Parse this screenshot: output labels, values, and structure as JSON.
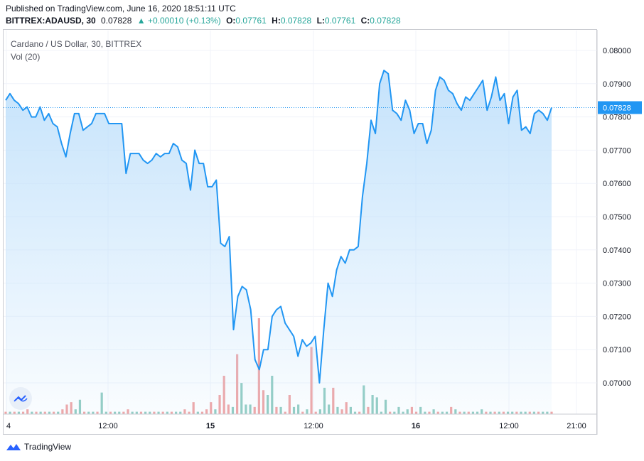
{
  "header": {
    "published": "Published on TradingView.com, June 16, 2020 18:51:11 UTC",
    "symbol": "BITTREX:ADAUSD, 30",
    "last": "0.07828",
    "change": "▲ +0.00010 (+0.13%)",
    "o_label": "O:",
    "o_value": "0.07761",
    "h_label": "H:",
    "h_value": "0.07828",
    "l_label": "L:",
    "l_value": "0.07761",
    "c_label": "C:",
    "c_value": "0.07828"
  },
  "legend": {
    "title": "Cardano / US Dollar, 30, BITTREX",
    "volume": "Vol (20)"
  },
  "footer": {
    "brand": "TradingView"
  },
  "colors": {
    "line": "#2196f3",
    "area_top": "#bbdefb",
    "up_vol": "#8fcbc0",
    "down_vol": "#f0a3a3",
    "price_label_bg": "#2196f3",
    "grid": "#f0f3fa"
  },
  "chart_data": {
    "type": "area",
    "title": "Cardano / US Dollar, 30, BITTREX",
    "ylim": [
      0.0695,
      0.0805
    ],
    "y_ticks": [
      "0.08000",
      "0.07900",
      "0.07800",
      "0.07700",
      "0.07600",
      "0.07500",
      "0.07400",
      "0.07300",
      "0.07200",
      "0.07100",
      "0.07000"
    ],
    "y_tick_values": [
      0.08,
      0.079,
      0.078,
      0.077,
      0.076,
      0.075,
      0.074,
      0.073,
      0.072,
      0.071,
      0.07
    ],
    "x_ticks": [
      {
        "label": "4",
        "index": 0,
        "bold": false
      },
      {
        "label": "12:00",
        "index": 16,
        "bold": false
      },
      {
        "label": "15",
        "index": 32,
        "bold": true
      },
      {
        "label": "12:00",
        "index": 48,
        "bold": false
      },
      {
        "label": "16",
        "index": 64,
        "bold": true
      },
      {
        "label": "12:00",
        "index": 80,
        "bold": false
      },
      {
        "label": "21:00",
        "index": 89,
        "bold": false
      }
    ],
    "last_price": "0.07828",
    "last_value": 0.07828,
    "series": [
      {
        "values": [
          0.0785,
          0.0787,
          0.0785,
          0.0784,
          0.0782,
          0.0783,
          0.078,
          0.078,
          0.0783,
          0.0779,
          0.0781,
          0.0778,
          0.0777,
          0.0772,
          0.0768,
          0.0775,
          0.0781,
          0.0781,
          0.0776,
          0.0777,
          0.0778,
          0.0781,
          0.0781,
          0.0781,
          0.0778,
          0.0778,
          0.0778,
          0.0778,
          0.0763,
          0.0769,
          0.0769,
          0.0769,
          0.0767,
          0.0766,
          0.0767,
          0.0769,
          0.0768,
          0.0769,
          0.0769,
          0.0772,
          0.0771,
          0.0767,
          0.0766,
          0.0758,
          0.077,
          0.0766,
          0.0766,
          0.0759,
          0.0759,
          0.0761,
          0.0742,
          0.0741,
          0.0744,
          0.0716,
          0.0726,
          0.0729,
          0.0728,
          0.0722,
          0.0707,
          0.0704,
          0.071,
          0.071,
          0.072,
          0.0722,
          0.0723,
          0.0718,
          0.0716,
          0.0714,
          0.0708,
          0.0713,
          0.0711,
          0.0712,
          0.0714,
          0.07,
          0.0716,
          0.073,
          0.0726,
          0.0734,
          0.0738,
          0.0736,
          0.074,
          0.074,
          0.0741,
          0.0756,
          0.0766,
          0.0779,
          0.0775,
          0.079,
          0.0794,
          0.0793,
          0.0782,
          0.0781,
          0.0779,
          0.0785,
          0.0782,
          0.0775,
          0.0778,
          0.0778,
          0.0772,
          0.0776,
          0.0788,
          0.0792,
          0.0791,
          0.0788,
          0.0787,
          0.0784,
          0.0782,
          0.0786,
          0.0785,
          0.0787,
          0.0789,
          0.0791,
          0.0782,
          0.0786,
          0.0792,
          0.0785,
          0.0787,
          0.0778,
          0.0786,
          0.0788,
          0.0776,
          0.0777,
          0.0775,
          0.0781,
          0.0782,
          0.0781,
          0.0779,
          0.07828
        ]
      }
    ],
    "volume": [
      {
        "v": 1,
        "up": false
      },
      {
        "v": 1,
        "up": true
      },
      {
        "v": 1,
        "up": false
      },
      {
        "v": 1,
        "up": true
      },
      {
        "v": 1,
        "up": false
      },
      {
        "v": 2,
        "up": false
      },
      {
        "v": 1,
        "up": true
      },
      {
        "v": 1,
        "up": false
      },
      {
        "v": 1,
        "up": true
      },
      {
        "v": 1,
        "up": false
      },
      {
        "v": 1,
        "up": true
      },
      {
        "v": 1,
        "up": false
      },
      {
        "v": 1,
        "up": true
      },
      {
        "v": 2,
        "up": false
      },
      {
        "v": 4,
        "up": false
      },
      {
        "v": 5,
        "up": false
      },
      {
        "v": 2,
        "up": true
      },
      {
        "v": 6,
        "up": true
      },
      {
        "v": 1,
        "up": false
      },
      {
        "v": 1,
        "up": true
      },
      {
        "v": 1,
        "up": true
      },
      {
        "v": 1,
        "up": false
      },
      {
        "v": 9,
        "up": true
      },
      {
        "v": 1,
        "up": true
      },
      {
        "v": 1,
        "up": false
      },
      {
        "v": 1,
        "up": true
      },
      {
        "v": 1,
        "up": true
      },
      {
        "v": 1,
        "up": false
      },
      {
        "v": 2,
        "up": false
      },
      {
        "v": 1,
        "up": true
      },
      {
        "v": 1,
        "up": true
      },
      {
        "v": 1,
        "up": false
      },
      {
        "v": 1,
        "up": true
      },
      {
        "v": 1,
        "up": true
      },
      {
        "v": 1,
        "up": false
      },
      {
        "v": 1,
        "up": true
      },
      {
        "v": 1,
        "up": false
      },
      {
        "v": 1,
        "up": true
      },
      {
        "v": 1,
        "up": false
      },
      {
        "v": 1,
        "up": true
      },
      {
        "v": 1,
        "up": true
      },
      {
        "v": 2,
        "up": false
      },
      {
        "v": 1,
        "up": false
      },
      {
        "v": 5,
        "up": false
      },
      {
        "v": 1,
        "up": true
      },
      {
        "v": 1,
        "up": false
      },
      {
        "v": 2,
        "up": false
      },
      {
        "v": 5,
        "up": false
      },
      {
        "v": 2,
        "up": true
      },
      {
        "v": 8,
        "up": false
      },
      {
        "v": 16,
        "up": false
      },
      {
        "v": 4,
        "up": false
      },
      {
        "v": 3,
        "up": true
      },
      {
        "v": 25,
        "up": false
      },
      {
        "v": 13,
        "up": true
      },
      {
        "v": 4,
        "up": true
      },
      {
        "v": 4,
        "up": true
      },
      {
        "v": 3,
        "up": false
      },
      {
        "v": 40,
        "up": false
      },
      {
        "v": 10,
        "up": false
      },
      {
        "v": 8,
        "up": true
      },
      {
        "v": 16,
        "up": true
      },
      {
        "v": 3,
        "up": false
      },
      {
        "v": 3,
        "up": true
      },
      {
        "v": 1,
        "up": false
      },
      {
        "v": 8,
        "up": false
      },
      {
        "v": 3,
        "up": true
      },
      {
        "v": 4,
        "up": true
      },
      {
        "v": 1,
        "up": false
      },
      {
        "v": 2,
        "up": true
      },
      {
        "v": 28,
        "up": false
      },
      {
        "v": 1,
        "up": false
      },
      {
        "v": 2,
        "up": true
      },
      {
        "v": 11,
        "up": true
      },
      {
        "v": 4,
        "up": true
      },
      {
        "v": 11,
        "up": false
      },
      {
        "v": 3,
        "up": true
      },
      {
        "v": 2,
        "up": false
      },
      {
        "v": 5,
        "up": false
      },
      {
        "v": 3,
        "up": true
      },
      {
        "v": 1,
        "up": true
      },
      {
        "v": 1,
        "up": false
      },
      {
        "v": 12,
        "up": true
      },
      {
        "v": 3,
        "up": false
      },
      {
        "v": 8,
        "up": true
      },
      {
        "v": 7,
        "up": true
      },
      {
        "v": 1,
        "up": true
      },
      {
        "v": 6,
        "up": true
      },
      {
        "v": 1,
        "up": false
      },
      {
        "v": 1,
        "up": true
      },
      {
        "v": 3,
        "up": true
      },
      {
        "v": 1,
        "up": true
      },
      {
        "v": 2,
        "up": true
      },
      {
        "v": 3,
        "up": false
      },
      {
        "v": 1,
        "up": false
      },
      {
        "v": 3,
        "up": true
      },
      {
        "v": 1,
        "up": true
      },
      {
        "v": 1,
        "up": false
      },
      {
        "v": 2,
        "up": true
      },
      {
        "v": 1,
        "up": false
      },
      {
        "v": 1,
        "up": true
      },
      {
        "v": 1,
        "up": true
      },
      {
        "v": 3,
        "up": false
      },
      {
        "v": 2,
        "up": true
      },
      {
        "v": 1,
        "up": false
      },
      {
        "v": 1,
        "up": true
      },
      {
        "v": 1,
        "up": false
      },
      {
        "v": 1,
        "up": true
      },
      {
        "v": 1,
        "up": true
      },
      {
        "v": 2,
        "up": true
      },
      {
        "v": 1,
        "up": false
      },
      {
        "v": 1,
        "up": true
      },
      {
        "v": 1,
        "up": false
      },
      {
        "v": 1,
        "up": true
      },
      {
        "v": 1,
        "up": false
      },
      {
        "v": 1,
        "up": true
      },
      {
        "v": 1,
        "up": true
      },
      {
        "v": 1,
        "up": false
      },
      {
        "v": 1,
        "up": true
      },
      {
        "v": 1,
        "up": true
      },
      {
        "v": 1,
        "up": false
      },
      {
        "v": 1,
        "up": true
      },
      {
        "v": 1,
        "up": false
      },
      {
        "v": 1,
        "up": true
      },
      {
        "v": 1,
        "up": true
      },
      {
        "v": 1,
        "up": false
      }
    ],
    "grid": true
  }
}
